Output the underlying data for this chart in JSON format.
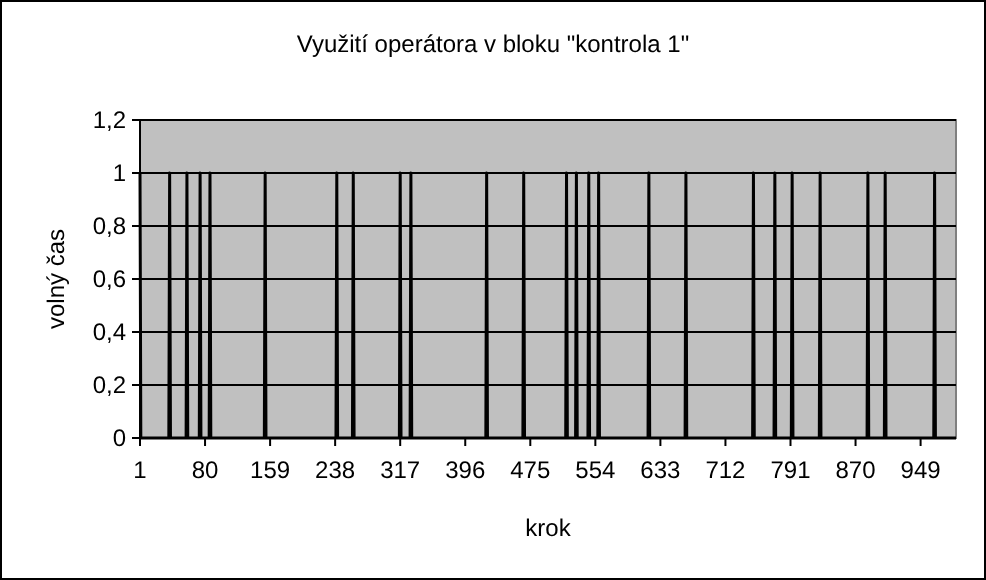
{
  "chart_data": {
    "type": "line",
    "title": "Využití operátora v bloku \"kontrola 1\"",
    "xlabel": "krok",
    "ylabel": "volný čas",
    "series": [
      {
        "color": "#000000",
        "x": [
          1,
          2,
          36,
          37,
          38,
          57,
          58,
          59,
          73,
          74,
          75,
          85,
          86,
          87,
          152,
          153,
          154,
          239,
          240,
          241,
          259,
          260,
          261,
          316,
          317,
          318,
          329,
          330,
          331,
          421,
          422,
          423,
          466,
          467,
          468,
          518,
          519,
          520,
          530,
          531,
          532,
          545,
          546,
          547,
          557,
          558,
          559,
          618,
          619,
          620,
          663,
          664,
          665,
          745,
          746,
          747,
          771,
          772,
          773,
          792,
          793,
          794,
          826,
          827,
          828,
          884,
          885,
          886,
          905,
          906,
          907,
          965,
          966,
          967,
          992
        ],
        "values": [
          1,
          0,
          0,
          1,
          0,
          0,
          1,
          0,
          0,
          1,
          0,
          0,
          1,
          0,
          0,
          1,
          0,
          0,
          1,
          0,
          0,
          1,
          0,
          0,
          1,
          0,
          0,
          1,
          0,
          0,
          1,
          0,
          0,
          1,
          0,
          0,
          1,
          0,
          0,
          1,
          0,
          0,
          1,
          0,
          0,
          1,
          0,
          0,
          1,
          0,
          0,
          1,
          0,
          0,
          1,
          0,
          0,
          1,
          0,
          0,
          1,
          0,
          0,
          1,
          0,
          0,
          1,
          0,
          0,
          1,
          0,
          0,
          1,
          0,
          0
        ]
      }
    ],
    "xlim": [
      1,
      992
    ],
    "xticks": [
      1,
      80,
      159,
      238,
      317,
      396,
      475,
      554,
      633,
      712,
      791,
      870,
      949
    ],
    "ylim": [
      0,
      1.2
    ],
    "yticks": [
      {
        "value": 0,
        "label": "0"
      },
      {
        "value": 0.2,
        "label": "0,2"
      },
      {
        "value": 0.4,
        "label": "0,4"
      },
      {
        "value": 0.6,
        "label": "0,6"
      },
      {
        "value": 0.8,
        "label": "0,8"
      },
      {
        "value": 1,
        "label": "1"
      },
      {
        "value": 1.2,
        "label": "1,2"
      }
    ],
    "grid": "y",
    "marker": "none",
    "line_style": "solid"
  }
}
